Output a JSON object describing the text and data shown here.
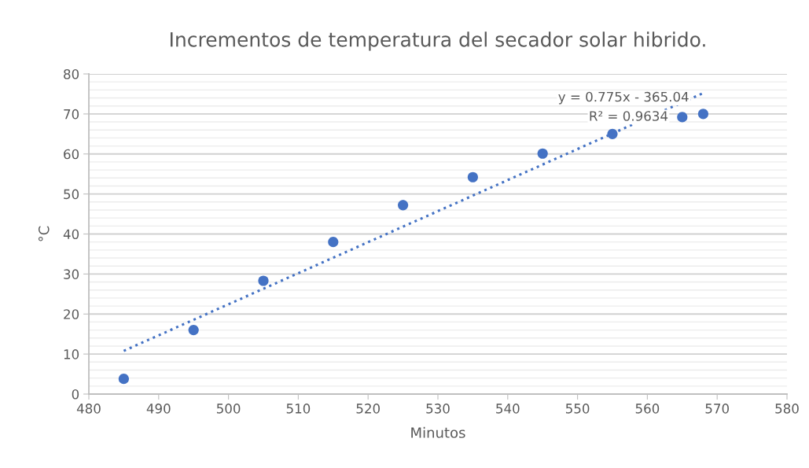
{
  "chart_data": {
    "type": "scatter",
    "title": "Incrementos de temperatura del secador solar hibrido.",
    "xlabel": "Minutos",
    "ylabel": "°C",
    "x": [
      485,
      495,
      505,
      515,
      525,
      535,
      545,
      555,
      565,
      568
    ],
    "series": [
      {
        "color": "#4472c4",
        "values": [
          3.8,
          16,
          28.3,
          38,
          47.2,
          54.2,
          60.1,
          65,
          69.2,
          70
        ],
        "marker": "circle"
      },
      {
        "type": "line",
        "color": "#4472c4",
        "x": [
          485,
          568
        ],
        "values": [
          10.8,
          75.2
        ],
        "line_style": "dotted",
        "marker": "none"
      }
    ],
    "annotations": [
      "y = 0.775x - 365.04",
      "R² = 0.9634"
    ],
    "xlim": [
      480,
      580
    ],
    "xticks": [
      480,
      490,
      500,
      510,
      520,
      530,
      540,
      550,
      560,
      570,
      580
    ],
    "ylim": [
      0,
      80
    ],
    "yticks": [
      0,
      10,
      20,
      30,
      40,
      50,
      60,
      70,
      80
    ],
    "grid": "y",
    "legend": false
  }
}
